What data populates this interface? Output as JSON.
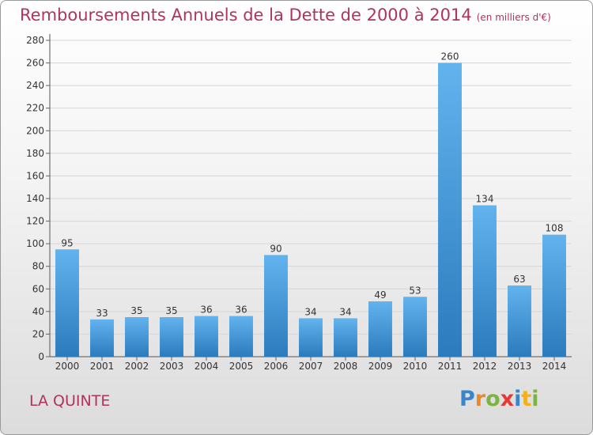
{
  "title": "Remboursements Annuels de la Dette de 2000 à 2014",
  "unit": "(en milliers d'€)",
  "commune": "LA QUINTE",
  "brand": {
    "letters": [
      "P",
      "r",
      "o",
      "x",
      "i",
      "t",
      "i"
    ],
    "colors": [
      "#3a86c8",
      "#e8892b",
      "#7cb342",
      "#e53935",
      "#3a86c8",
      "#f2b01e",
      "#7cb342"
    ]
  },
  "colors": {
    "bar_top": "#62b3ee",
    "bar_bottom": "#2b7bbd",
    "title": "#b0335e"
  },
  "chart_data": {
    "type": "bar",
    "categories": [
      "2000",
      "2001",
      "2002",
      "2003",
      "2004",
      "2005",
      "2006",
      "2007",
      "2008",
      "2009",
      "2010",
      "2011",
      "2012",
      "2013",
      "2014"
    ],
    "values": [
      95,
      33,
      35,
      35,
      36,
      36,
      90,
      34,
      34,
      49,
      53,
      260,
      134,
      63,
      108
    ],
    "ylim": [
      0,
      280
    ],
    "yticks": [
      0,
      20,
      40,
      60,
      80,
      100,
      120,
      140,
      160,
      180,
      200,
      220,
      240,
      260,
      280
    ],
    "grid": true
  }
}
